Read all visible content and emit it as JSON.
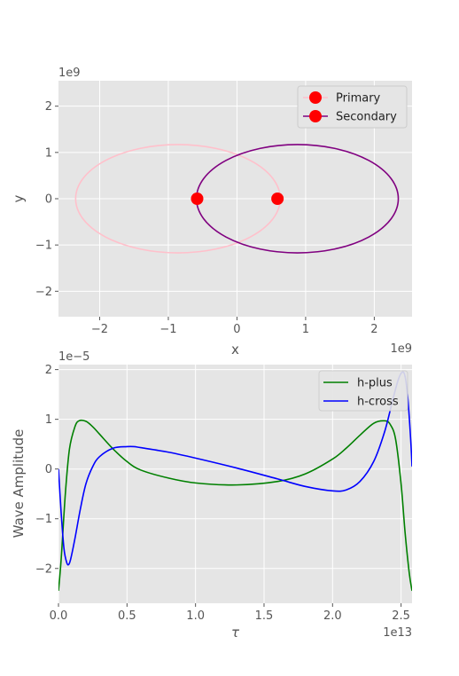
{
  "chart_data": [
    {
      "type": "line",
      "xlabel": "x",
      "ylabel": "y",
      "x_offset_label": "1e9",
      "y_offset_label": "1e9",
      "xlim": [
        -2.6,
        2.55
      ],
      "ylim": [
        -2.55,
        2.55
      ],
      "xticks": [
        -2,
        -1,
        0,
        1,
        2
      ],
      "yticks": [
        -2,
        -1,
        0,
        1,
        2
      ],
      "grid": true,
      "legend_position": "top-right",
      "series": [
        {
          "name": "Primary",
          "color": "#ffc0cb",
          "orbit": {
            "cx": -0.86,
            "cy": 0,
            "rx": 1.49,
            "ry": 1.17
          },
          "marker": {
            "x": -0.58,
            "y": 0,
            "color": "#ff0000"
          }
        },
        {
          "name": "Secondary",
          "color": "#800080",
          "orbit": {
            "cx": 0.88,
            "cy": 0,
            "rx": 1.47,
            "ry": 1.17
          },
          "marker": {
            "x": 0.59,
            "y": 0,
            "color": "#ff0000"
          }
        }
      ]
    },
    {
      "type": "line",
      "xlabel": "τ",
      "ylabel": "Wave Amplitude",
      "x_offset_label": "1e13",
      "y_offset_label": "1e−5",
      "xlim": [
        0,
        2.58
      ],
      "ylim": [
        -2.7,
        2.1
      ],
      "xticks": [
        0.0,
        0.5,
        1.0,
        1.5,
        2.0,
        2.5
      ],
      "xtick_labels": [
        "0.0",
        "0.5",
        "1.0",
        "1.5",
        "2.0",
        "2.5"
      ],
      "yticks": [
        -2,
        -1,
        0,
        1,
        2
      ],
      "grid": true,
      "legend_position": "top-right",
      "series": [
        {
          "name": "h-plus",
          "color": "#008000",
          "x": [
            0,
            0.02,
            0.05,
            0.08,
            0.12,
            0.15,
            0.2,
            0.25,
            0.3,
            0.4,
            0.5,
            0.6,
            0.8,
            1.0,
            1.3,
            1.6,
            1.8,
            2.0,
            2.1,
            2.2,
            2.3,
            2.38,
            2.42,
            2.46,
            2.5,
            2.53,
            2.56,
            2.58
          ],
          "y": [
            -2.45,
            -1.8,
            -0.5,
            0.4,
            0.85,
            0.97,
            0.96,
            0.85,
            0.7,
            0.4,
            0.15,
            -0.02,
            -0.18,
            -0.28,
            -0.32,
            -0.25,
            -0.1,
            0.2,
            0.42,
            0.68,
            0.92,
            0.97,
            0.9,
            0.6,
            -0.3,
            -1.3,
            -2.1,
            -2.45
          ]
        },
        {
          "name": "h-cross",
          "color": "#0000ff",
          "x": [
            0,
            0.02,
            0.04,
            0.06,
            0.075,
            0.09,
            0.12,
            0.16,
            0.2,
            0.25,
            0.3,
            0.4,
            0.5,
            0.55,
            0.6,
            0.8,
            1.0,
            1.3,
            1.6,
            1.8,
            2.0,
            2.1,
            2.2,
            2.3,
            2.38,
            2.44,
            2.48,
            2.51,
            2.53,
            2.55,
            2.57,
            2.58
          ],
          "y": [
            0,
            -0.9,
            -1.6,
            -1.88,
            -1.92,
            -1.8,
            -1.4,
            -0.8,
            -0.3,
            0.05,
            0.25,
            0.42,
            0.45,
            0.45,
            0.43,
            0.34,
            0.22,
            0.02,
            -0.2,
            -0.35,
            -0.44,
            -0.42,
            -0.25,
            0.15,
            0.75,
            1.4,
            1.8,
            1.95,
            1.85,
            1.4,
            0.6,
            0.05
          ]
        }
      ]
    }
  ]
}
